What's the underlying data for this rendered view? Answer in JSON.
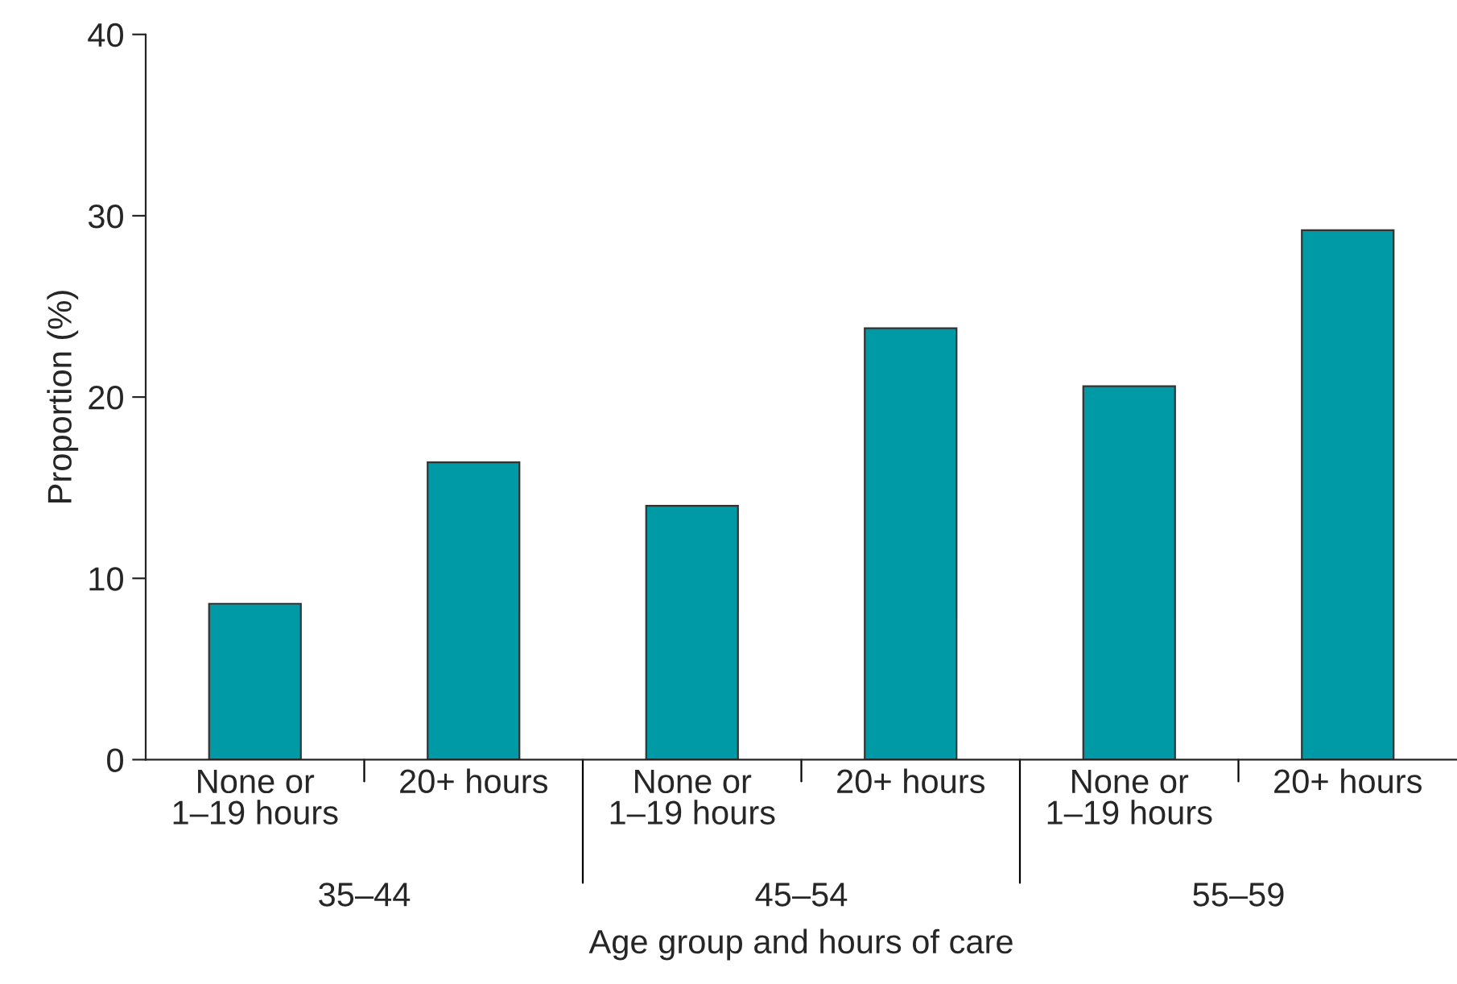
{
  "chart_data": {
    "type": "bar",
    "xlabel": "Age group and hours of care",
    "ylabel": "Proportion (%)",
    "categories": [
      "None or\n1–19 hours",
      "20+ hours",
      "None or\n1–19 hours",
      "20+ hours",
      "None or\n1–19 hours",
      "20+ hours"
    ],
    "values": [
      8.6,
      16.4,
      14.0,
      23.8,
      20.6,
      29.2
    ],
    "color": "#009aa6",
    "ylim": [
      0,
      40
    ],
    "yticks": [
      0,
      10,
      20,
      30,
      40
    ],
    "grid": false,
    "annotations": [
      "35–44",
      "45–54",
      "55–59"
    ]
  }
}
